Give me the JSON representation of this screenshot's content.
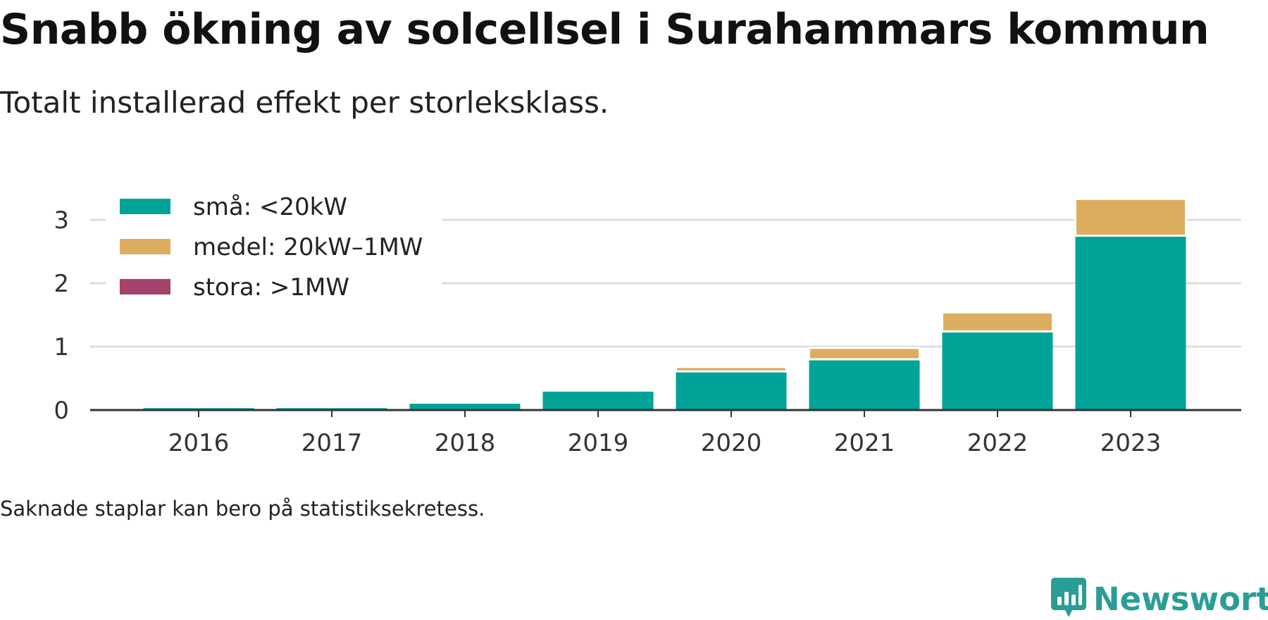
{
  "title": "Snabb ökning av solcellsel i Surahammars kommun",
  "subtitle": "Totalt installerad effekt per storleksklass.",
  "footnote": "Saknade staplar kan bero på statistiksekretess.",
  "logo": {
    "text": "Newsworthy",
    "icon": "newsworthy-chart-bubble-icon"
  },
  "colors": {
    "sma": "#00a398",
    "medel": "#dcad5e",
    "stora": "#a5426a",
    "logo": "#2a9d96"
  },
  "chart_data": {
    "type": "bar",
    "stacked": true,
    "categories": [
      "2016",
      "2017",
      "2018",
      "2019",
      "2020",
      "2021",
      "2022",
      "2023"
    ],
    "series": [
      {
        "name": "små: <20kW",
        "color": "#00a398",
        "values": [
          0.03,
          0.03,
          0.1,
          0.29,
          0.61,
          0.8,
          1.24,
          2.75
        ]
      },
      {
        "name": "medel: 20kW–1MW",
        "color": "#dcad5e",
        "values": [
          0,
          0,
          0,
          0,
          0.07,
          0.18,
          0.3,
          0.58
        ]
      },
      {
        "name": "stora: >1MW",
        "color": "#a5426a",
        "values": [
          0,
          0,
          0,
          0,
          0,
          0,
          0,
          0
        ]
      }
    ],
    "yticks": [
      0,
      1,
      2,
      3
    ],
    "ylim": [
      0,
      3.45
    ],
    "grid": true,
    "legend_position": "top-left",
    "xlabel": "",
    "ylabel": ""
  }
}
